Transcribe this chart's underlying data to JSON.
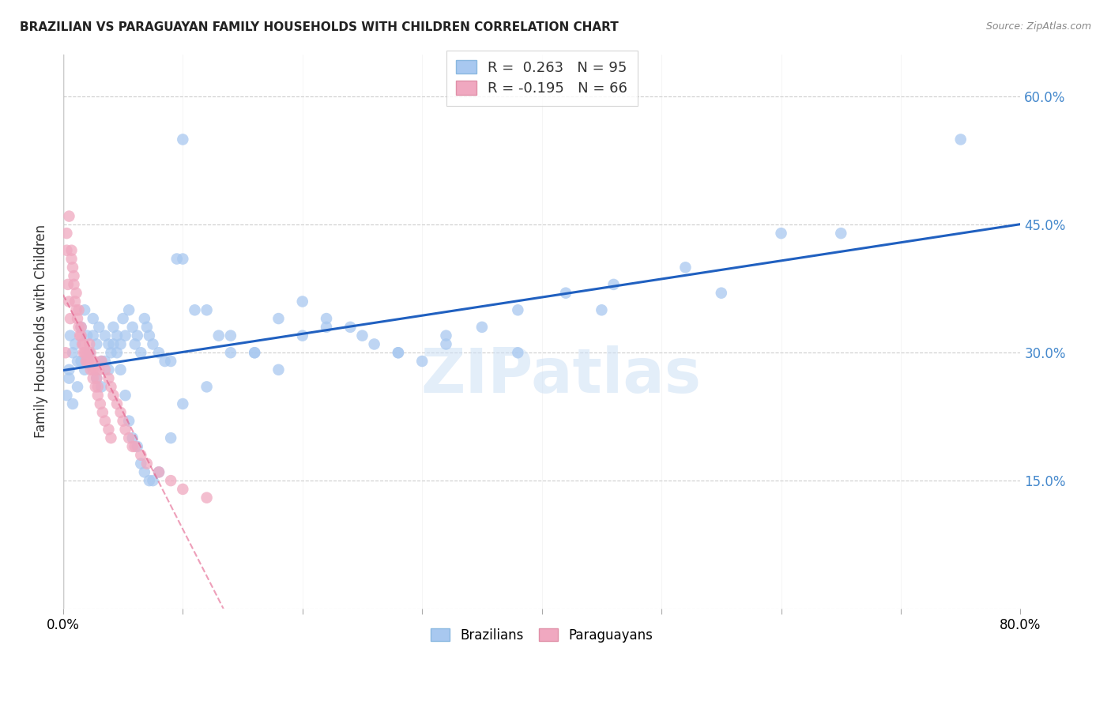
{
  "title": "BRAZILIAN VS PARAGUAYAN FAMILY HOUSEHOLDS WITH CHILDREN CORRELATION CHART",
  "source": "Source: ZipAtlas.com",
  "ylabel": "Family Households with Children",
  "x_min": 0.0,
  "x_max": 0.8,
  "y_min": 0.0,
  "y_max": 0.65,
  "x_ticks": [
    0.0,
    0.1,
    0.2,
    0.3,
    0.4,
    0.5,
    0.6,
    0.7,
    0.8
  ],
  "y_ticks": [
    0.0,
    0.15,
    0.3,
    0.45,
    0.6
  ],
  "y_tick_labels_right": [
    "",
    "15.0%",
    "30.0%",
    "45.0%",
    "60.0%"
  ],
  "grid_color": "#cccccc",
  "background_color": "#ffffff",
  "watermark": "ZIPatlas",
  "brazilian_color": "#a8c8f0",
  "paraguayan_color": "#f0a8c0",
  "brazilian_line_color": "#2060c0",
  "paraguayan_line_color": "#e05080",
  "legend_R_blue": "0.263",
  "legend_N_blue": "95",
  "legend_R_pink": "-0.195",
  "legend_N_pink": "66",
  "brazilian_legend": "Brazilians",
  "paraguayan_legend": "Paraguayans",
  "brazil_x": [
    0.005,
    0.008,
    0.01,
    0.012,
    0.015,
    0.018,
    0.02,
    0.022,
    0.025,
    0.028,
    0.03,
    0.032,
    0.035,
    0.038,
    0.04,
    0.042,
    0.045,
    0.048,
    0.05,
    0.052,
    0.055,
    0.058,
    0.06,
    0.062,
    0.065,
    0.068,
    0.07,
    0.072,
    0.075,
    0.08,
    0.085,
    0.09,
    0.095,
    0.1,
    0.11,
    0.12,
    0.13,
    0.14,
    0.16,
    0.18,
    0.2,
    0.22,
    0.25,
    0.28,
    0.32,
    0.38,
    0.45,
    0.55,
    0.65,
    0.75,
    0.005,
    0.008,
    0.012,
    0.015,
    0.018,
    0.022,
    0.025,
    0.028,
    0.032,
    0.035,
    0.038,
    0.042,
    0.045,
    0.048,
    0.052,
    0.055,
    0.058,
    0.062,
    0.065,
    0.068,
    0.072,
    0.075,
    0.08,
    0.09,
    0.1,
    0.12,
    0.14,
    0.16,
    0.18,
    0.2,
    0.22,
    0.24,
    0.26,
    0.28,
    0.3,
    0.32,
    0.35,
    0.38,
    0.42,
    0.46,
    0.52,
    0.6,
    0.003,
    0.006,
    0.1
  ],
  "brazil_y": [
    0.28,
    0.3,
    0.31,
    0.29,
    0.33,
    0.35,
    0.32,
    0.3,
    0.34,
    0.31,
    0.33,
    0.29,
    0.32,
    0.31,
    0.3,
    0.33,
    0.32,
    0.31,
    0.34,
    0.32,
    0.35,
    0.33,
    0.31,
    0.32,
    0.3,
    0.34,
    0.33,
    0.32,
    0.31,
    0.3,
    0.29,
    0.29,
    0.41,
    0.41,
    0.35,
    0.35,
    0.32,
    0.32,
    0.3,
    0.34,
    0.36,
    0.33,
    0.32,
    0.3,
    0.31,
    0.3,
    0.35,
    0.37,
    0.44,
    0.55,
    0.27,
    0.24,
    0.26,
    0.29,
    0.28,
    0.3,
    0.32,
    0.27,
    0.26,
    0.29,
    0.28,
    0.31,
    0.3,
    0.28,
    0.25,
    0.22,
    0.2,
    0.19,
    0.17,
    0.16,
    0.15,
    0.15,
    0.16,
    0.2,
    0.24,
    0.26,
    0.3,
    0.3,
    0.28,
    0.32,
    0.34,
    0.33,
    0.31,
    0.3,
    0.29,
    0.32,
    0.33,
    0.35,
    0.37,
    0.38,
    0.4,
    0.44,
    0.25,
    0.32,
    0.55
  ],
  "paraguay_x": [
    0.002,
    0.003,
    0.004,
    0.005,
    0.006,
    0.007,
    0.008,
    0.009,
    0.01,
    0.011,
    0.012,
    0.013,
    0.014,
    0.015,
    0.016,
    0.017,
    0.018,
    0.019,
    0.02,
    0.021,
    0.022,
    0.023,
    0.024,
    0.025,
    0.026,
    0.027,
    0.028,
    0.029,
    0.03,
    0.032,
    0.035,
    0.038,
    0.04,
    0.042,
    0.045,
    0.048,
    0.05,
    0.052,
    0.055,
    0.058,
    0.06,
    0.065,
    0.07,
    0.08,
    0.09,
    0.1,
    0.12,
    0.003,
    0.005,
    0.007,
    0.009,
    0.011,
    0.013,
    0.015,
    0.017,
    0.019,
    0.021,
    0.023,
    0.025,
    0.027,
    0.029,
    0.031,
    0.033,
    0.035,
    0.038,
    0.04
  ],
  "paraguay_y": [
    0.3,
    0.42,
    0.38,
    0.36,
    0.34,
    0.42,
    0.4,
    0.38,
    0.36,
    0.35,
    0.34,
    0.33,
    0.32,
    0.32,
    0.31,
    0.3,
    0.3,
    0.29,
    0.29,
    0.3,
    0.31,
    0.3,
    0.29,
    0.28,
    0.29,
    0.28,
    0.27,
    0.26,
    0.28,
    0.29,
    0.28,
    0.27,
    0.26,
    0.25,
    0.24,
    0.23,
    0.22,
    0.21,
    0.2,
    0.19,
    0.19,
    0.18,
    0.17,
    0.16,
    0.15,
    0.14,
    0.13,
    0.44,
    0.46,
    0.41,
    0.39,
    0.37,
    0.35,
    0.33,
    0.31,
    0.3,
    0.29,
    0.28,
    0.27,
    0.26,
    0.25,
    0.24,
    0.23,
    0.22,
    0.21,
    0.2
  ]
}
